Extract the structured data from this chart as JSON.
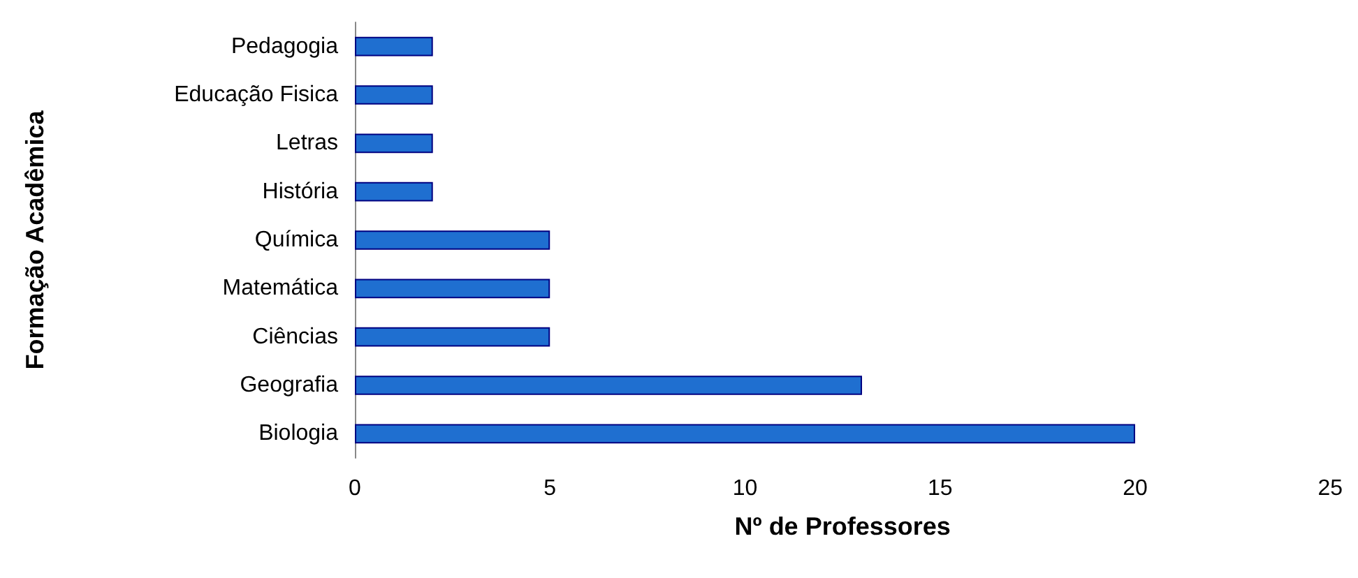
{
  "chart_data": {
    "type": "bar",
    "orientation": "horizontal",
    "xlabel": "Nº de Professores",
    "ylabel": "Formação Acadêmica",
    "categories": [
      "Pedagogia",
      "Educação Fisica",
      "Letras",
      "História",
      "Química",
      "Matemática",
      "Ciências",
      "Geografia",
      "Biologia"
    ],
    "values": [
      2,
      2,
      2,
      2,
      5,
      5,
      5,
      13,
      20
    ],
    "color": "#1f6fd0",
    "xlim": [
      0,
      25
    ],
    "xticks": [
      0,
      5,
      10,
      15,
      20,
      25
    ],
    "grid": false
  }
}
